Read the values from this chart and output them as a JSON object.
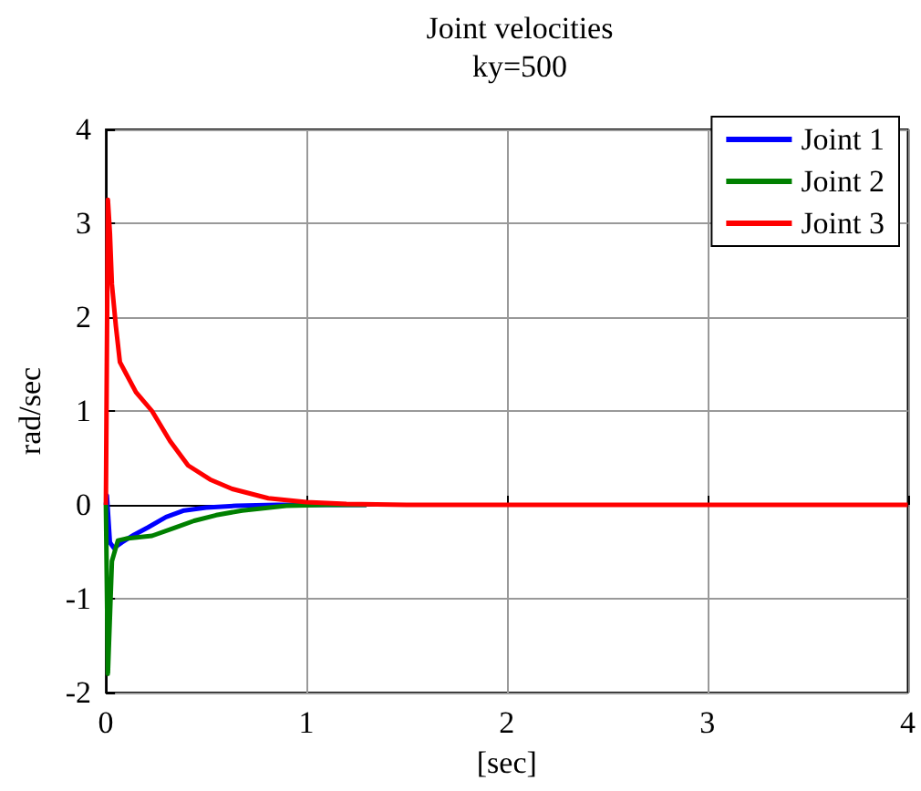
{
  "chart_data": {
    "type": "line",
    "title": "Joint velocities",
    "subtitle": "ky=500",
    "xlabel": "[sec]",
    "ylabel": "rad/sec",
    "xlim": [
      0,
      4
    ],
    "xticks": [
      0,
      1,
      2,
      3,
      4
    ],
    "ylim": [
      -2,
      4
    ],
    "yticks": [
      -2,
      -1,
      0,
      1,
      2,
      3,
      4
    ],
    "grid": true,
    "legend": "top right",
    "marker": "none",
    "line_style": "solid",
    "series": [
      {
        "name": "Joint 1",
        "color": "#0000ff",
        "x": [
          0,
          0.005,
          0.02,
          0.04,
          0.08,
          0.14,
          0.21,
          0.3,
          0.39,
          0.5,
          0.65,
          0.85,
          1.1,
          1.3
        ],
        "values": [
          0,
          0.1,
          -0.4,
          -0.46,
          -0.4,
          -0.32,
          -0.24,
          -0.13,
          -0.06,
          -0.03,
          -0.01,
          0,
          0,
          0
        ]
      },
      {
        "name": "Joint 2",
        "color": "#008000",
        "x": [
          0,
          0.01,
          0.03,
          0.06,
          0.1,
          0.23,
          0.35,
          0.44,
          0.55,
          0.68,
          0.9,
          1.1,
          1.3
        ],
        "values": [
          0,
          -1.8,
          -0.6,
          -0.38,
          -0.36,
          -0.33,
          -0.24,
          -0.17,
          -0.11,
          -0.06,
          -0.01,
          0,
          0
        ],
        "line_style": "solid"
      },
      {
        "name": "Joint 3",
        "color": "#ff0000",
        "x": [
          0,
          0.01,
          0.02,
          0.03,
          0.05,
          0.07,
          0.1,
          0.15,
          0.23,
          0.32,
          0.41,
          0.52,
          0.63,
          0.81,
          1.0,
          1.2,
          1.5,
          2,
          3,
          4
        ],
        "values": [
          0,
          3.25,
          2.9,
          2.35,
          1.9,
          1.52,
          1.4,
          1.2,
          1.0,
          0.68,
          0.42,
          0.27,
          0.17,
          0.07,
          0.03,
          0.01,
          0,
          0,
          0,
          0
        ]
      }
    ]
  }
}
